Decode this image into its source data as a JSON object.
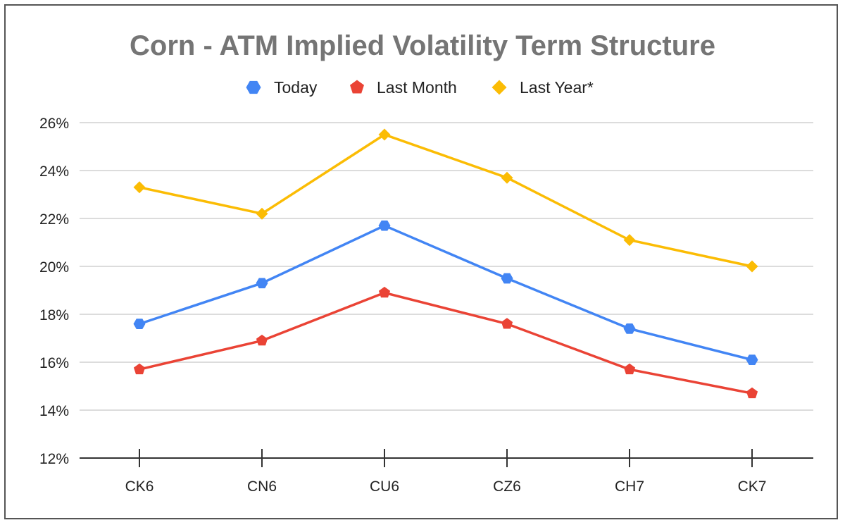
{
  "chart_data": {
    "type": "line",
    "title": "Corn - ATM Implied Volatility Term Structure",
    "xlabel": "",
    "ylabel": "",
    "categories": [
      "CK6",
      "CN6",
      "CU6",
      "CZ6",
      "CH7",
      "CK7"
    ],
    "ylim": [
      12,
      26
    ],
    "yticks": [
      12,
      14,
      16,
      18,
      20,
      22,
      24,
      26
    ],
    "ytick_labels": [
      "12%",
      "14%",
      "16%",
      "18%",
      "20%",
      "22%",
      "24%",
      "26%"
    ],
    "grid": true,
    "legend_position": "top-center",
    "series": [
      {
        "name": "Today",
        "color": "#4285F4",
        "marker": "hexagon",
        "values": [
          17.6,
          19.3,
          21.7,
          19.5,
          17.4,
          16.1
        ]
      },
      {
        "name": "Last Month",
        "color": "#EA4335",
        "marker": "pentagon",
        "values": [
          15.7,
          16.9,
          18.9,
          17.6,
          15.7,
          14.7
        ]
      },
      {
        "name": "Last Year*",
        "color": "#FBBC04",
        "marker": "diamond",
        "values": [
          23.3,
          22.2,
          25.5,
          23.7,
          21.1,
          20.0
        ]
      }
    ]
  }
}
